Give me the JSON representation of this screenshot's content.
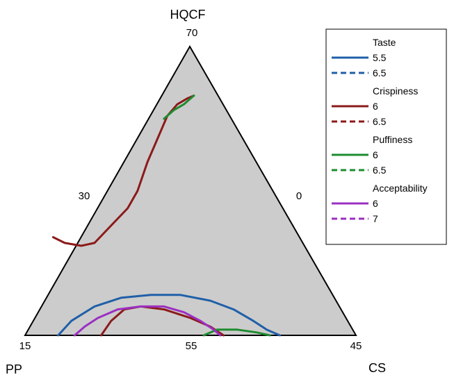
{
  "chart_data": {
    "type": "ternary-contour",
    "axes": {
      "top": {
        "label": "HQCF"
      },
      "left": {
        "label": "PP"
      },
      "right": {
        "label": "CS"
      }
    },
    "vertex_values": {
      "top": "70",
      "bottom_left": "15",
      "bottom_right": "45"
    },
    "edge_values": {
      "left": "30",
      "right": "0",
      "bottom": "55"
    },
    "background_color": "#cccccc",
    "legend": {
      "position": "right",
      "groups": [
        {
          "title": "Taste",
          "color": "#1f5fa8",
          "entries": [
            {
              "label": "5.5",
              "style": "solid"
            },
            {
              "label": "6.5",
              "style": "dashed"
            }
          ]
        },
        {
          "title": "Crispiness",
          "color": "#8b1a1a",
          "entries": [
            {
              "label": "6",
              "style": "solid"
            },
            {
              "label": "6.5",
              "style": "dashed"
            }
          ]
        },
        {
          "title": "Puffiness",
          "color": "#1e8c2e",
          "entries": [
            {
              "label": "6",
              "style": "solid"
            },
            {
              "label": "6.5",
              "style": "dashed"
            }
          ]
        },
        {
          "title": "Acceptability",
          "color": "#9b2fc2",
          "entries": [
            {
              "label": "6",
              "style": "solid"
            },
            {
              "label": "7",
              "style": "dashed"
            }
          ]
        }
      ]
    },
    "contours": [
      {
        "series": "Taste",
        "level": "5.5",
        "style": "solid",
        "color": "#1f5fa8",
        "points": [
          [
            0.77,
            0.0
          ],
          [
            0.73,
            0.02
          ],
          [
            0.69,
            0.05
          ],
          [
            0.63,
            0.09
          ],
          [
            0.56,
            0.12
          ],
          [
            0.47,
            0.14
          ],
          [
            0.38,
            0.14
          ],
          [
            0.29,
            0.13
          ],
          [
            0.21,
            0.1
          ],
          [
            0.14,
            0.05
          ],
          [
            0.1,
            0.0
          ]
        ]
      },
      {
        "series": "Crispiness",
        "level": "6",
        "style": "solid",
        "color": "#8b1a1a",
        "points": [
          [
            0.085,
            0.34
          ],
          [
            0.12,
            0.32
          ],
          [
            0.17,
            0.31
          ],
          [
            0.21,
            0.32
          ],
          [
            0.26,
            0.38
          ],
          [
            0.31,
            0.44
          ],
          [
            0.34,
            0.5
          ],
          [
            0.37,
            0.6
          ],
          [
            0.4,
            0.68
          ],
          [
            0.43,
            0.76
          ],
          [
            0.46,
            0.8
          ],
          [
            0.49,
            0.82
          ],
          [
            0.51,
            0.83
          ]
        ]
      },
      {
        "series": "Crispiness",
        "level": "6",
        "style": "solid",
        "color": "#8b1a1a",
        "points": [
          [
            0.23,
            0.0
          ],
          [
            0.26,
            0.05
          ],
          [
            0.3,
            0.09
          ],
          [
            0.35,
            0.1
          ],
          [
            0.42,
            0.09
          ],
          [
            0.5,
            0.06
          ],
          [
            0.56,
            0.03
          ],
          [
            0.6,
            0.0
          ]
        ]
      },
      {
        "series": "Puffiness",
        "level": "6",
        "style": "solid",
        "color": "#1e8c2e",
        "points": [
          [
            0.42,
            0.75
          ],
          [
            0.45,
            0.78
          ],
          [
            0.48,
            0.8
          ],
          [
            0.51,
            0.83
          ]
        ]
      },
      {
        "series": "Puffiness",
        "level": "6",
        "style": "solid",
        "color": "#1e8c2e",
        "points": [
          [
            0.54,
            0.0
          ],
          [
            0.58,
            0.02
          ],
          [
            0.64,
            0.02
          ],
          [
            0.7,
            0.01
          ],
          [
            0.74,
            0.0
          ]
        ]
      },
      {
        "series": "Acceptability",
        "level": "6",
        "style": "solid",
        "color": "#9b2fc2",
        "points": [
          [
            0.15,
            0.0
          ],
          [
            0.18,
            0.03
          ],
          [
            0.22,
            0.06
          ],
          [
            0.28,
            0.09
          ],
          [
            0.35,
            0.1
          ],
          [
            0.42,
            0.1
          ],
          [
            0.48,
            0.08
          ],
          [
            0.53,
            0.05
          ],
          [
            0.57,
            0.02
          ],
          [
            0.59,
            0.0
          ]
        ]
      }
    ]
  }
}
